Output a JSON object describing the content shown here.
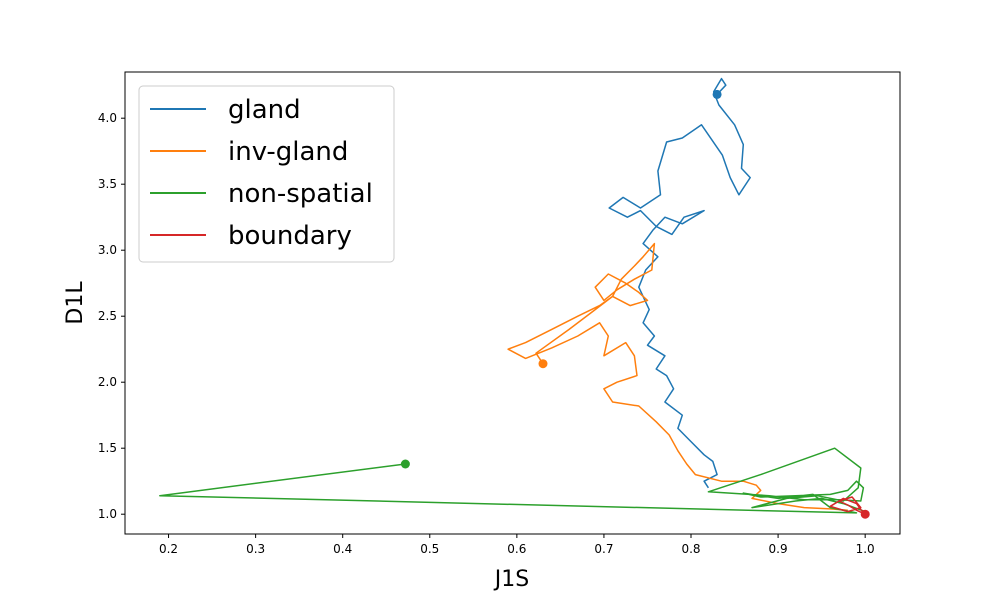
{
  "chart_data": {
    "type": "line",
    "xlabel": "J1S",
    "ylabel": "D1L",
    "xlim": [
      0.15,
      1.04
    ],
    "ylim": [
      0.85,
      4.35
    ],
    "xticks": [
      0.2,
      0.3,
      0.4,
      0.5,
      0.6,
      0.7,
      0.8,
      0.9,
      1.0
    ],
    "xtick_labels": [
      "0.2",
      "0.3",
      "0.4",
      "0.5",
      "0.6",
      "0.7",
      "0.8",
      "0.9",
      "1.0"
    ],
    "yticks": [
      1.0,
      1.5,
      2.0,
      2.5,
      3.0,
      3.5,
      4.0
    ],
    "ytick_labels": [
      "1.0",
      "1.5",
      "2.0",
      "2.5",
      "3.0",
      "3.5",
      "4.0"
    ],
    "grid": false,
    "legend_position": "top-left",
    "series": [
      {
        "name": "gland",
        "color": "#1f77b4",
        "start_marker": [
          0.83,
          4.18
        ],
        "points": [
          [
            0.83,
            4.18
          ],
          [
            0.84,
            4.25
          ],
          [
            0.835,
            4.3
          ],
          [
            0.826,
            4.2
          ],
          [
            0.832,
            4.1
          ],
          [
            0.85,
            3.95
          ],
          [
            0.86,
            3.8
          ],
          [
            0.858,
            3.62
          ],
          [
            0.868,
            3.55
          ],
          [
            0.855,
            3.42
          ],
          [
            0.845,
            3.55
          ],
          [
            0.836,
            3.72
          ],
          [
            0.812,
            3.95
          ],
          [
            0.79,
            3.85
          ],
          [
            0.772,
            3.82
          ],
          [
            0.762,
            3.6
          ],
          [
            0.765,
            3.42
          ],
          [
            0.742,
            3.32
          ],
          [
            0.722,
            3.4
          ],
          [
            0.706,
            3.32
          ],
          [
            0.727,
            3.25
          ],
          [
            0.742,
            3.3
          ],
          [
            0.76,
            3.18
          ],
          [
            0.778,
            3.12
          ],
          [
            0.792,
            3.25
          ],
          [
            0.815,
            3.3
          ],
          [
            0.79,
            3.2
          ],
          [
            0.77,
            3.25
          ],
          [
            0.756,
            3.15
          ],
          [
            0.745,
            3.05
          ],
          [
            0.762,
            2.95
          ],
          [
            0.748,
            2.85
          ],
          [
            0.74,
            2.72
          ],
          [
            0.752,
            2.55
          ],
          [
            0.745,
            2.45
          ],
          [
            0.758,
            2.35
          ],
          [
            0.75,
            2.28
          ],
          [
            0.77,
            2.2
          ],
          [
            0.76,
            2.1
          ],
          [
            0.772,
            2.05
          ],
          [
            0.78,
            1.95
          ],
          [
            0.77,
            1.85
          ],
          [
            0.79,
            1.75
          ],
          [
            0.785,
            1.65
          ],
          [
            0.8,
            1.55
          ],
          [
            0.815,
            1.45
          ],
          [
            0.825,
            1.4
          ],
          [
            0.83,
            1.3
          ],
          [
            0.815,
            1.25
          ],
          [
            0.82,
            1.2
          ]
        ]
      },
      {
        "name": "inv-gland",
        "color": "#ff7f0e",
        "start_marker": [
          0.63,
          2.14
        ],
        "points": [
          [
            0.63,
            2.14
          ],
          [
            0.622,
            2.22
          ],
          [
            0.66,
            2.4
          ],
          [
            0.69,
            2.55
          ],
          [
            0.71,
            2.65
          ],
          [
            0.72,
            2.78
          ],
          [
            0.735,
            2.88
          ],
          [
            0.745,
            2.95
          ],
          [
            0.758,
            3.05
          ],
          [
            0.755,
            2.85
          ],
          [
            0.735,
            2.78
          ],
          [
            0.715,
            2.7
          ],
          [
            0.7,
            2.62
          ],
          [
            0.69,
            2.72
          ],
          [
            0.705,
            2.82
          ],
          [
            0.725,
            2.75
          ],
          [
            0.74,
            2.68
          ],
          [
            0.75,
            2.62
          ],
          [
            0.73,
            2.58
          ],
          [
            0.71,
            2.65
          ],
          [
            0.695,
            2.58
          ],
          [
            0.67,
            2.5
          ],
          [
            0.64,
            2.4
          ],
          [
            0.61,
            2.3
          ],
          [
            0.59,
            2.25
          ],
          [
            0.61,
            2.18
          ],
          [
            0.64,
            2.26
          ],
          [
            0.67,
            2.35
          ],
          [
            0.695,
            2.45
          ],
          [
            0.705,
            2.35
          ],
          [
            0.7,
            2.2
          ],
          [
            0.725,
            2.3
          ],
          [
            0.735,
            2.2
          ],
          [
            0.738,
            2.05
          ],
          [
            0.715,
            2.0
          ],
          [
            0.7,
            1.95
          ],
          [
            0.71,
            1.85
          ],
          [
            0.74,
            1.82
          ],
          [
            0.76,
            1.7
          ],
          [
            0.775,
            1.6
          ],
          [
            0.785,
            1.48
          ],
          [
            0.795,
            1.38
          ],
          [
            0.805,
            1.3
          ],
          [
            0.835,
            1.25
          ],
          [
            0.86,
            1.25
          ],
          [
            0.875,
            1.22
          ],
          [
            0.88,
            1.18
          ],
          [
            0.87,
            1.12
          ],
          [
            0.9,
            1.08
          ],
          [
            0.93,
            1.05
          ],
          [
            0.96,
            1.04
          ],
          [
            0.98,
            1.03
          ]
        ]
      },
      {
        "name": "non-spatial",
        "color": "#2ca02c",
        "start_marker": [
          0.472,
          1.38
        ],
        "points": [
          [
            0.472,
            1.38
          ],
          [
            0.19,
            1.14
          ],
          [
            0.99,
            1.01
          ],
          [
            0.96,
            1.05
          ],
          [
            0.94,
            1.15
          ],
          [
            0.9,
            1.12
          ],
          [
            0.86,
            1.16
          ],
          [
            0.88,
            1.13
          ],
          [
            0.92,
            1.14
          ],
          [
            0.96,
            1.15
          ],
          [
            0.98,
            1.18
          ],
          [
            0.99,
            1.25
          ],
          [
            0.998,
            1.2
          ],
          [
            0.995,
            1.1
          ],
          [
            0.97,
            1.11
          ],
          [
            0.93,
            1.11
          ],
          [
            0.89,
            1.14
          ],
          [
            0.82,
            1.17
          ],
          [
            0.88,
            1.3
          ],
          [
            0.965,
            1.5
          ],
          [
            0.995,
            1.35
          ],
          [
            0.992,
            1.2
          ],
          [
            0.975,
            1.1
          ],
          [
            0.945,
            1.14
          ],
          [
            0.91,
            1.12
          ],
          [
            0.87,
            1.05
          ],
          [
            0.92,
            1.1
          ],
          [
            0.95,
            1.12
          ],
          [
            0.975,
            1.08
          ],
          [
            1.0,
            1.02
          ]
        ]
      },
      {
        "name": "boundary",
        "color": "#d62728",
        "start_marker": [
          1.0,
          1.0
        ],
        "points": [
          [
            1.0,
            1.0
          ],
          [
            0.99,
            1.03
          ],
          [
            0.98,
            1.07
          ],
          [
            0.97,
            1.1
          ],
          [
            0.985,
            1.13
          ],
          [
            0.995,
            1.05
          ],
          [
            0.98,
            1.02
          ],
          [
            0.96,
            1.06
          ],
          [
            0.975,
            1.12
          ],
          [
            0.99,
            1.08
          ],
          [
            0.998,
            1.01
          ],
          [
            1.0,
            1.0
          ]
        ]
      }
    ]
  }
}
